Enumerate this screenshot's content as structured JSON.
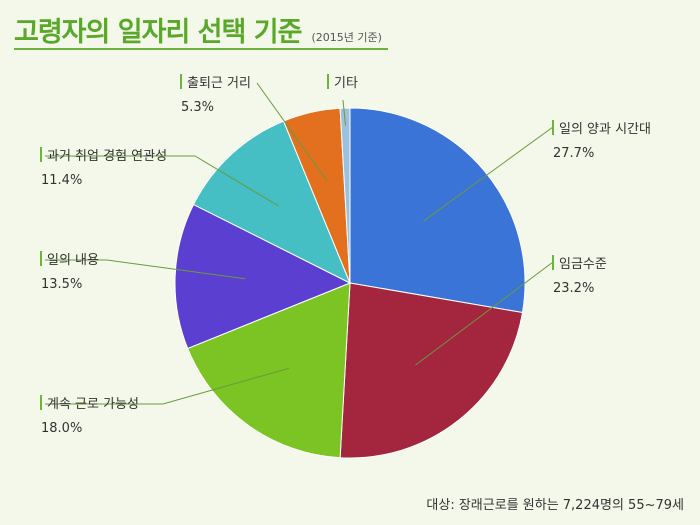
{
  "header": {
    "title": "고령자의 일자리 선택 기준",
    "subtitle": "(2015년 기준)"
  },
  "footnote": "대상: 장래근로를 원하는 7,224명의 55~79세",
  "chart_data": {
    "type": "pie",
    "title": "고령자의 일자리 선택 기준",
    "subtitle": "(2015년 기준)",
    "unit": "%",
    "slices": [
      {
        "label": "일의 양과 시간대",
        "value": 27.7,
        "value_label": "27.7%",
        "color": "#3a74d6"
      },
      {
        "label": "임금수준",
        "value": 23.2,
        "value_label": "23.2%",
        "color": "#a3253e"
      },
      {
        "label": "계속 근로 가능성",
        "value": 18.0,
        "value_label": "18.0%",
        "color": "#7cc423"
      },
      {
        "label": "일의 내용",
        "value": 13.5,
        "value_label": "13.5%",
        "color": "#5a3fd0"
      },
      {
        "label": "과거 취업 경험 연관성",
        "value": 11.4,
        "value_label": "11.4%",
        "color": "#45bec4"
      },
      {
        "label": "출퇴근 거리",
        "value": 5.3,
        "value_label": "5.3%",
        "color": "#e2701f"
      },
      {
        "label": "기타",
        "value": 0.9,
        "value_label": "",
        "color": "#9cc0e0"
      }
    ]
  }
}
